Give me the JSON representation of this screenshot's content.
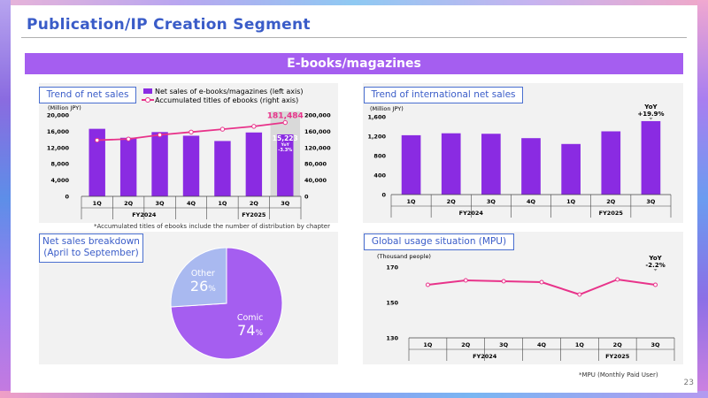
{
  "header": {
    "title": "Publication/IP Creation Segment",
    "banner": "E-books/magazines",
    "page_number": "23"
  },
  "panels": {
    "sales": {
      "label": "Trend of net sales",
      "unit": "(Million JPY)",
      "legend_bar": "Net sales of e-books/magazines (left axis)",
      "legend_line": "Accumulated titles of ebooks (right axis)",
      "footnote": "*Accumulated titles of ebooks include the number of distribution by chapter"
    },
    "intl": {
      "label": "Trend of international net sales",
      "unit": "(Million JPY)"
    },
    "breakdown": {
      "label_line1": "Net sales breakdown",
      "label_line2": "(April to September)"
    },
    "mpu": {
      "label": "Global usage situation (MPU)",
      "unit": "(Thousand people)",
      "footnote": "*MPU (Monthly Paid User)"
    }
  },
  "chart_data": [
    {
      "type": "bar",
      "categories": [
        "1Q",
        "2Q",
        "3Q",
        "4Q",
        "1Q",
        "2Q",
        "3Q"
      ],
      "groups": [
        {
          "label": "FY2024",
          "span": 4
        },
        {
          "label": "FY2025",
          "span": 3
        }
      ],
      "series": [
        {
          "name": "Net sales of e-books/magazines (left axis)",
          "axis": "left",
          "values": [
            16600,
            14400,
            15800,
            14900,
            13600,
            15700,
            15223
          ]
        },
        {
          "name": "Accumulated titles of ebooks (right axis)",
          "axis": "right",
          "type": "line",
          "values": [
            138000,
            141000,
            151000,
            158000,
            165000,
            172000,
            181484
          ]
        }
      ],
      "ylim": [
        0,
        20000
      ],
      "y2lim": [
        0,
        200000
      ],
      "yticks": [
        "0",
        "4,000",
        "8,000",
        "12,000",
        "16,000",
        "20,000"
      ],
      "y2ticks": [
        "0",
        "40,000",
        "80,000",
        "120,000",
        "160,000",
        "200,000"
      ],
      "annotations": {
        "line_last": "181,484",
        "bar_last": "15,223",
        "bar_yoy_label": "YoY",
        "bar_yoy": "-3.3%"
      },
      "colors": {
        "bar": "#8a2be2",
        "line": "#e8338a",
        "highlight": "#d9d9d9"
      }
    },
    {
      "type": "bar",
      "categories": [
        "1Q",
        "2Q",
        "3Q",
        "4Q",
        "1Q",
        "2Q",
        "3Q"
      ],
      "groups": [
        {
          "label": "FY2024",
          "span": 4
        },
        {
          "label": "FY2025",
          "span": 3
        }
      ],
      "series": [
        {
          "values": [
            1220,
            1260,
            1250,
            1160,
            1040,
            1300,
            1510
          ]
        }
      ],
      "ylim": [
        0,
        1600
      ],
      "yticks": [
        "0",
        "400",
        "800",
        "1,200",
        "1,600"
      ],
      "annotations": {
        "yoy_label": "YoY",
        "yoy": "+19.9%"
      },
      "colors": {
        "bar": "#8a2be2"
      }
    },
    {
      "type": "pie",
      "slices": [
        {
          "label": "Comic",
          "value": 74,
          "display": "74",
          "unit": "%",
          "color": "#a55ef0"
        },
        {
          "label": "Other",
          "value": 26,
          "display": "26",
          "unit": "%",
          "color": "#a9b9f0"
        }
      ]
    },
    {
      "type": "line",
      "categories": [
        "1Q",
        "2Q",
        "3Q",
        "4Q",
        "1Q",
        "2Q",
        "3Q"
      ],
      "groups": [
        {
          "label": "FY2024",
          "span": 4
        },
        {
          "label": "FY2025",
          "span": 3
        }
      ],
      "series": [
        {
          "values": [
            160,
            162.5,
            162,
            161.5,
            154.5,
            163,
            160
          ]
        }
      ],
      "ylim": [
        130,
        172
      ],
      "yticks": [
        "130",
        "150",
        "170"
      ],
      "annotations": {
        "yoy_label": "YoY",
        "yoy": "-2.2%"
      },
      "colors": {
        "line": "#e8338a"
      }
    }
  ]
}
